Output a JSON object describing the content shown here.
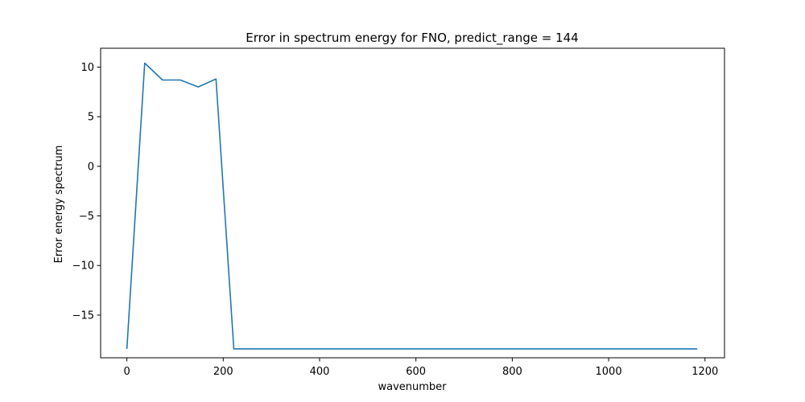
{
  "chart_data": {
    "type": "line",
    "title": "Error in spectrum energy for FNO, predict_range = 144",
    "xlabel": "wavenumber",
    "ylabel": "Error energy spectrum",
    "xlim": [
      -54.5,
      1240.5
    ],
    "ylim": [
      -19.3,
      11.9
    ],
    "xticks": [
      0,
      200,
      400,
      600,
      800,
      1000,
      1200
    ],
    "xtick_labels": [
      "0",
      "200",
      "400",
      "600",
      "800",
      "1000",
      "1200"
    ],
    "yticks": [
      10,
      5,
      0,
      -5,
      -10,
      -15
    ],
    "ytick_labels": [
      "10",
      "5",
      "0",
      "−5",
      "−10",
      "−15"
    ],
    "grid": false,
    "line_color": "#1f77b4",
    "series": [
      {
        "x": [
          0,
          37,
          74,
          111,
          148,
          185,
          222,
          259,
          296,
          333,
          370,
          407,
          444,
          481,
          518,
          555,
          592,
          629,
          666,
          703,
          740,
          777,
          814,
          851,
          888,
          925,
          962,
          999,
          1036,
          1073,
          1110,
          1147,
          1184
        ],
        "y": [
          -18.4,
          10.4,
          8.7,
          8.7,
          8.0,
          8.8,
          -18.4,
          -18.4,
          -18.4,
          -18.4,
          -18.4,
          -18.4,
          -18.4,
          -18.4,
          -18.4,
          -18.4,
          -18.4,
          -18.4,
          -18.4,
          -18.4,
          -18.4,
          -18.4,
          -18.4,
          -18.4,
          -18.4,
          -18.4,
          -18.4,
          -18.4,
          -18.4,
          -18.4,
          -18.4,
          -18.4,
          -18.4
        ]
      }
    ]
  }
}
